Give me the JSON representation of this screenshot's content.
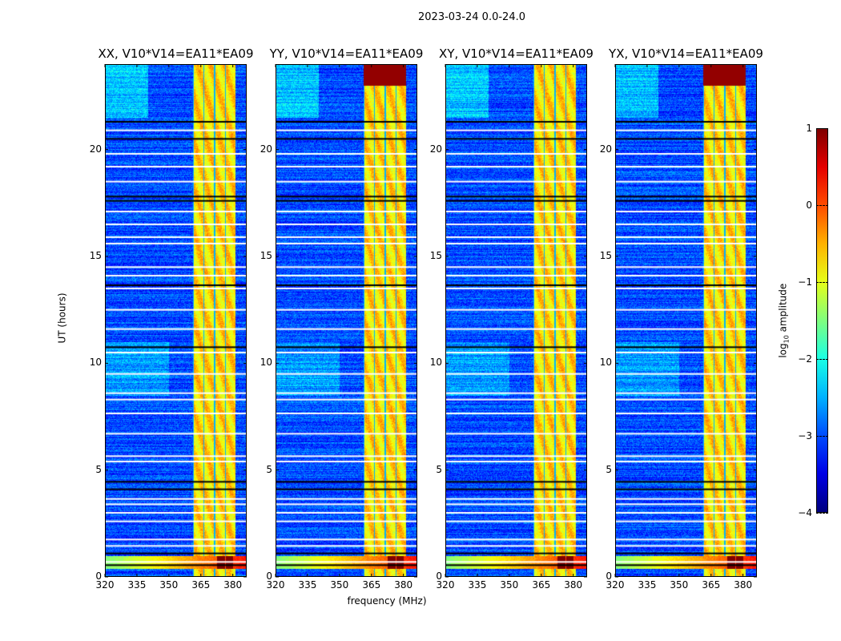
{
  "chart_data": {
    "type": "heatmap",
    "title": "2023-03-24 0.0-24.0",
    "xlabel": "frequency (MHz)",
    "ylabel": "UT (hours)",
    "xlim": [
      320,
      386.5
    ],
    "ylim": [
      0,
      24
    ],
    "x_ticks": [
      "320",
      "335",
      "350",
      "365",
      "380"
    ],
    "x_tick_values": [
      320,
      335,
      350,
      365,
      380
    ],
    "y_ticks": [
      "0",
      "5",
      "10",
      "15",
      "20"
    ],
    "y_tick_values": [
      0,
      5,
      10,
      15,
      20
    ],
    "panels": [
      {
        "title": "XX, V10*V14=EA11*EA09",
        "top_band_saturated": false
      },
      {
        "title": "YY, V10*V14=EA11*EA09",
        "top_band_saturated": true
      },
      {
        "title": "XY, V10*V14=EA11*EA09",
        "top_band_saturated": false
      },
      {
        "title": "YX, V10*V14=EA11*EA09",
        "top_band_saturated": true
      }
    ],
    "background_log_amplitude": -3,
    "rfi_band_mhz": [
      361,
      381
    ],
    "rfi_band_log_amplitude": -0.7,
    "strong_rfi": {
      "freq_mhz": [
        372,
        380
      ],
      "ut_hours": [
        0.4,
        1.0
      ],
      "log_amplitude": 1
    },
    "broadband_event_ut_hours": [
      0.4,
      1.0
    ],
    "flagged_rows_ut_hours": [
      20.9,
      19.8,
      19.2,
      18.5,
      17.1,
      16.5,
      15.9,
      15.6,
      14.5,
      14.1,
      13.5,
      12.5,
      11.6,
      10.5,
      9.5,
      8.6,
      8.3,
      7.65,
      6.7,
      5.65,
      5.4,
      3.65,
      3.4,
      3.0,
      2.6,
      1.75,
      1.45,
      0.7
    ],
    "dark_rows_ut_hours": [
      21.3,
      20.5,
      17.8,
      17.6,
      13.65,
      10.75,
      4.45,
      4.1,
      1.1,
      0.55
    ],
    "colorbar": {
      "label": "log10 amplitude",
      "label_main": "log",
      "label_sub": "10",
      "label_rest": " amplitude",
      "colormap": "jet",
      "range": [
        -4,
        1
      ],
      "ticks": [
        "1",
        "0",
        "−1",
        "−2",
        "−3",
        "−4"
      ],
      "tick_values": [
        1,
        0,
        -1,
        -2,
        -3,
        -4
      ]
    }
  }
}
